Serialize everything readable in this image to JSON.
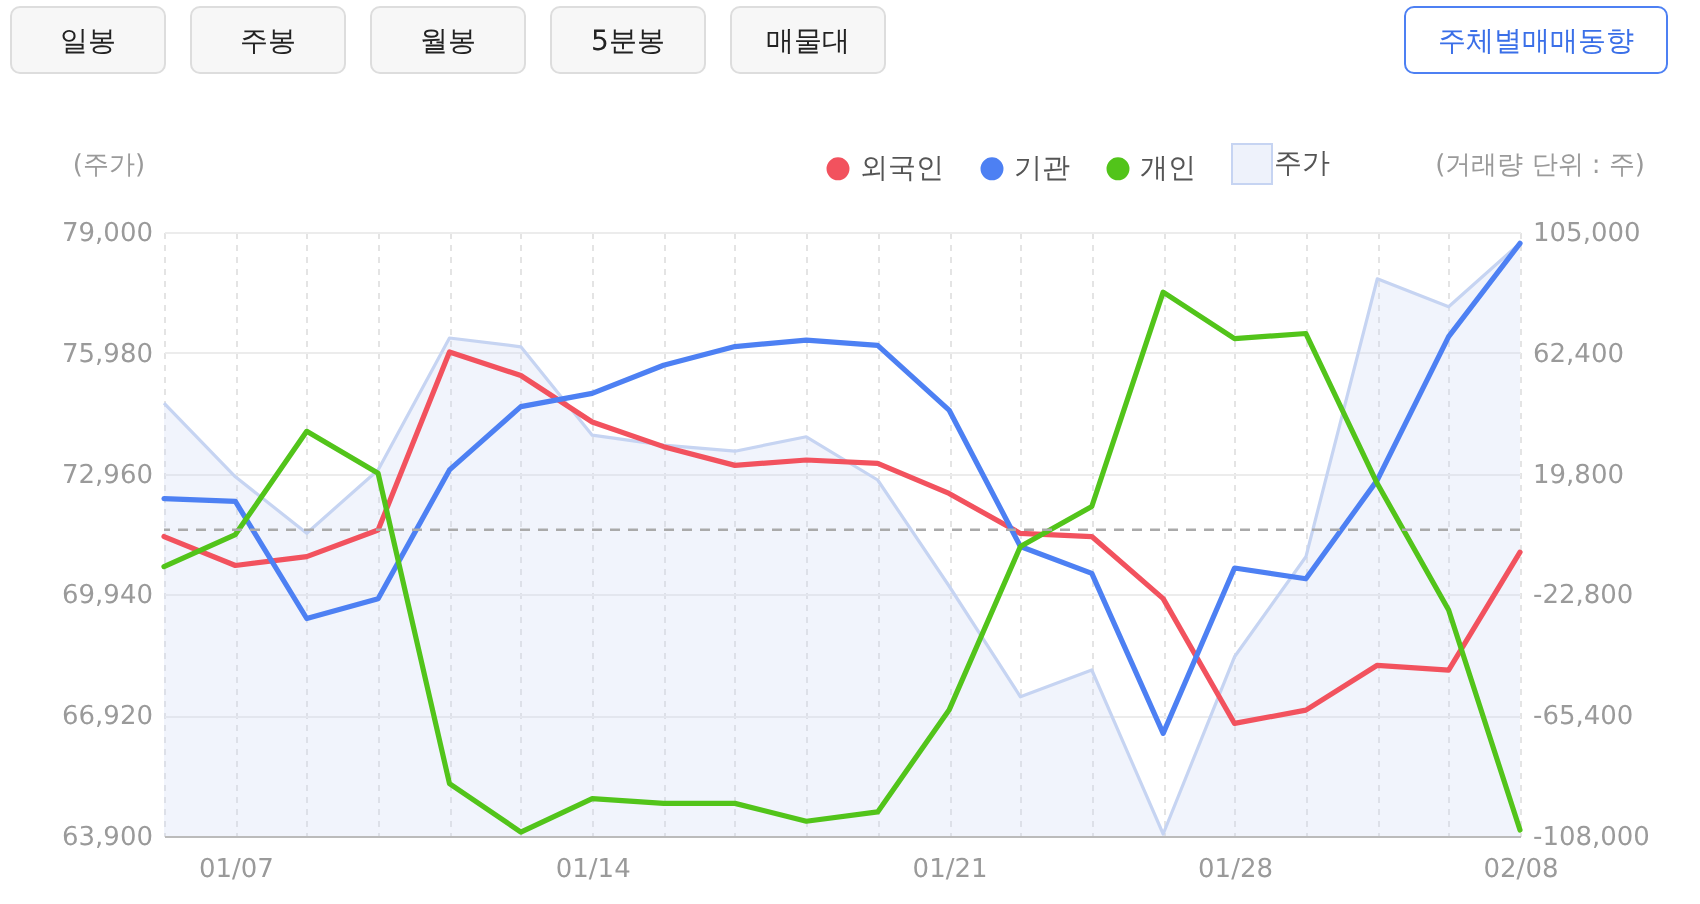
{
  "chart_data": {
    "type": "line",
    "ylabel": "(주가)",
    "y2label": "(거래량 단위 : 주)",
    "categories": [
      null,
      "01/07",
      null,
      null,
      null,
      null,
      "01/14",
      null,
      null,
      null,
      null,
      "01/21",
      null,
      null,
      null,
      "01/28",
      null,
      null,
      null,
      "02/08"
    ],
    "ylim": [
      63900,
      79000
    ],
    "yticks": [
      {
        "value": 63900,
        "label": "63,900"
      },
      {
        "value": 66920,
        "label": "66,920"
      },
      {
        "value": 69940,
        "label": "69,940"
      },
      {
        "value": 72960,
        "label": "72,960"
      },
      {
        "value": 75980,
        "label": "75,980"
      },
      {
        "value": 79000,
        "label": "79,000"
      }
    ],
    "y2lim": [
      -108000,
      105000
    ],
    "y2ticks": [
      {
        "value": -108000,
        "label": "-108,000"
      },
      {
        "value": -65400,
        "label": "-65,400"
      },
      {
        "value": -22800,
        "label": "-22,800"
      },
      {
        "value": 19800,
        "label": "19,800"
      },
      {
        "value": 62400,
        "label": "62,400"
      },
      {
        "value": 105000,
        "label": "105,000"
      }
    ],
    "series": [
      {
        "name": "외국인",
        "color": "#f2525e",
        "axis": "y2",
        "values": [
          -2400,
          -12600,
          -9500,
          -100,
          62700,
          54400,
          38000,
          29300,
          22700,
          24600,
          23400,
          12800,
          -1300,
          -2400,
          -24300,
          -68300,
          -63600,
          -47800,
          -49500,
          -7900
        ]
      },
      {
        "name": "기관",
        "color": "#4d80f3",
        "axis": "y2",
        "values": [
          11000,
          10000,
          -31300,
          -24300,
          21100,
          43400,
          48100,
          58000,
          64600,
          66900,
          65000,
          42200,
          -5900,
          -15400,
          -71800,
          -13500,
          -17300,
          17500,
          68100,
          101000
        ]
      },
      {
        "name": "개인",
        "color": "#52c41a",
        "axis": "y2",
        "values": [
          -13000,
          -1700,
          34700,
          19900,
          -89500,
          -106600,
          -94800,
          -96500,
          -96500,
          -102800,
          -99500,
          -63600,
          -5900,
          8200,
          83800,
          67400,
          69200,
          16300,
          -28300,
          -105900
        ]
      },
      {
        "name": "주가",
        "type": "area",
        "color": "#c6d4f2",
        "values": [
          74720,
          72880,
          71470,
          73050,
          76350,
          76130,
          73920,
          73670,
          73520,
          73880,
          72800,
          70150,
          67380,
          68050,
          63950,
          68380,
          70880,
          77830,
          77130,
          78720
        ]
      }
    ],
    "ref_lines": [
      {
        "axis": "y2",
        "value": 0,
        "color": "#aaaaaa",
        "line_style": "dashed"
      }
    ],
    "grid": true,
    "legend": "top right",
    "annotations": [
      "일봉",
      "주봉",
      "월봉",
      "5분봉",
      "매물대",
      "주체별매매동향"
    ]
  }
}
